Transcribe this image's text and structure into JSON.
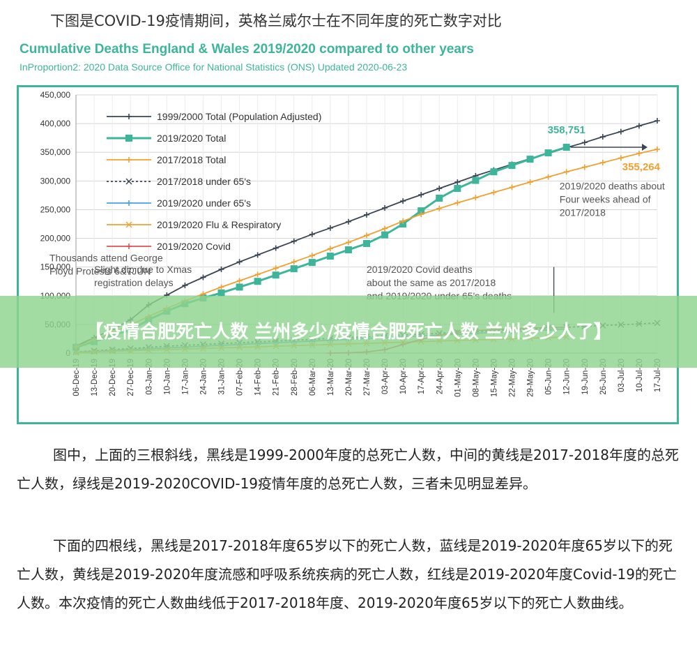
{
  "intro_text": "下图是COVID-19疫情期间，英格兰威尔士在不同年度的死亡数字对比",
  "banner_text": "【疫情合肥死亡人数 兰州多少/疫情合肥死亡人数 兰州多少人了】",
  "paragraph_1": "图中，上面的三根斜线，黑线是1999-2000年度的总死亡人数，中间的黄线是2017-2018年度的总死亡人数，绿线是2019-2020COVID-19疫情年度的总死亡人数，三者未见明显差异。",
  "paragraph_2": "下面的四根线，黑线是2017-2018年度65岁以下的死亡人数，蓝线是2019-2020年度65岁以下的死亡人数，黄线是2019-2020年度流感和呼吸系统疾病的死亡人数，红线是2019-2020年度Covid-19的死亡人数。本次疫情的死亡人数曲线低于2017-2018年度、2019-2020年度65岁以下的死亡人数曲线。",
  "chart_data": {
    "type": "line",
    "title": "Cumulative Deaths England & Wales 2019/2020 compared to other years",
    "subtitle": "InProportion2: 2020 Data Source Office for National Statistics (ONS) Updated 2020-06-23",
    "xlabel": "",
    "ylabel": "",
    "ylim": [
      0,
      450000
    ],
    "yticks": [
      "0",
      "50,000",
      "100,000",
      "150,000",
      "200,000",
      "250,000",
      "300,000",
      "350,000",
      "400,000",
      "450,000"
    ],
    "grid": true,
    "legend_position": "top-left",
    "categories": [
      "06-Dec-19",
      "13-Dec-19",
      "20-Dec-19",
      "27-Dec-19",
      "03-Jan-20",
      "10-Jan-20",
      "17-Jan-20",
      "24-Jan-20",
      "31-Jan-20",
      "07-Feb-20",
      "14-Feb-20",
      "21-Feb-20",
      "28-Feb-20",
      "06-Mar-20",
      "13-Mar-20",
      "20-Mar-20",
      "27-Mar-20",
      "03-Apr-20",
      "10-Apr-20",
      "17-Apr-20",
      "24-Apr-20",
      "01-May-20",
      "08-May-20",
      "15-May-20",
      "22-May-20",
      "29-May-20",
      "05-Jun-20",
      "12-Jun-20",
      "19-Jun-20",
      "26-Jun-20",
      "03-Jul-20",
      "10-Jul-20",
      "17-Jul-20"
    ],
    "series": [
      {
        "name": "1999/2000 Total (Population Adjusted)",
        "color": "#3a4654",
        "marker": "plus",
        "values": [
          12000,
          27000,
          41000,
          58000,
          84000,
          101000,
          118000,
          132000,
          146000,
          159000,
          171000,
          183000,
          195000,
          207000,
          218000,
          229000,
          241000,
          253000,
          265000,
          276000,
          287000,
          298000,
          309000,
          319000,
          329000,
          339000,
          348000,
          358000,
          367000,
          377000,
          386000,
          396000,
          405000
        ]
      },
      {
        "name": "2019/2020 Total",
        "color": "#3db59a",
        "marker": "square",
        "values": [
          10000,
          20000,
          31000,
          40000,
          58000,
          73000,
          86000,
          96000,
          105000,
          115000,
          125000,
          136000,
          147000,
          158000,
          169000,
          180000,
          191000,
          206000,
          225000,
          248000,
          270000,
          287000,
          301000,
          316000,
          327000,
          338000,
          349000,
          358751,
          null,
          null,
          null,
          null,
          null
        ]
      },
      {
        "name": "2017/2018 Total",
        "color": "#f0a030",
        "marker": "plus",
        "values": [
          11000,
          23000,
          35000,
          49000,
          64000,
          78000,
          91000,
          103000,
          115000,
          126000,
          137000,
          148000,
          159000,
          170000,
          182000,
          193000,
          205000,
          217000,
          230000,
          242000,
          252000,
          262000,
          271000,
          280000,
          289000,
          298000,
          307000,
          316000,
          324000,
          332000,
          340000,
          348000,
          355264
        ]
      },
      {
        "name": "2017/2018 under 65's",
        "color": "#3a4654",
        "marker": "x",
        "dashed": true,
        "values": [
          2000,
          4000,
          6000,
          8000,
          10000,
          12000,
          13500,
          15000,
          16500,
          18000,
          19500,
          21000,
          22500,
          24000,
          25500,
          27000,
          28500,
          30000,
          31500,
          33000,
          34500,
          36000,
          37500,
          39000,
          40500,
          42000,
          43500,
          45000,
          46500,
          48000,
          49500,
          51000,
          52500
        ]
      },
      {
        "name": "2019/2020 under 65's",
        "color": "#4aa0e0",
        "marker": "plus",
        "values": [
          1500,
          3000,
          4500,
          6000,
          7500,
          9000,
          10500,
          12000,
          13500,
          15000,
          16500,
          18000,
          19500,
          21000,
          22500,
          24000,
          25500,
          27000,
          28500,
          30000,
          31500,
          33000,
          34500,
          36000,
          37500,
          39000,
          40500,
          42000,
          null,
          null,
          null,
          null,
          null
        ]
      },
      {
        "name": "2019/2020 Flu & Respiratory",
        "color": "#f0a030",
        "marker": "x",
        "values": [
          1000,
          2000,
          3000,
          4000,
          5000,
          6000,
          7000,
          8000,
          9000,
          10000,
          11000,
          12000,
          13000,
          14000,
          15000,
          16000,
          17000,
          18000,
          19000,
          20000,
          21000,
          22000,
          23000,
          24000,
          25000,
          26000,
          27000,
          28000,
          null,
          null,
          null,
          null,
          null
        ]
      },
      {
        "name": "2019/2020 Covid",
        "color": "#e05050",
        "marker": "plus",
        "values": [
          null,
          null,
          null,
          null,
          null,
          null,
          null,
          null,
          null,
          null,
          null,
          null,
          null,
          null,
          0,
          500,
          2000,
          6000,
          15000,
          24000,
          31000,
          36000,
          39000,
          41000,
          42500,
          43500,
          44500,
          45000,
          null,
          null,
          null,
          null,
          null
        ]
      }
    ],
    "data_labels": [
      {
        "series": "2019/2020 Total",
        "category": "12-Jun-20",
        "text": "358,751",
        "color": "#3db59a"
      },
      {
        "series": "2017/2018 Total",
        "category": "17-Jul-20",
        "text": "355,264",
        "color": "#f0a030"
      }
    ],
    "annotations": [
      {
        "text": [
          "2019/2020 deaths about",
          "Four weeks ahead of",
          "2017/2018"
        ],
        "category": "19-Jun-20",
        "value": 285000
      },
      {
        "text": [
          "Thousands attend George",
          "Floyd Protests 6&7JUN"
        ],
        "category": "10-Jun-20",
        "value": 160000
      },
      {
        "text": [
          "Slight dip due to Xmas",
          "registration delays"
        ],
        "category": "13-Dec-19",
        "value": 140000
      },
      {
        "text": [
          "2019/2020 Covid deaths",
          "about the same as  2017/2018",
          "and 2019/2020 under 65's deaths"
        ],
        "category": "27-Mar-20",
        "value": 140000
      }
    ]
  }
}
